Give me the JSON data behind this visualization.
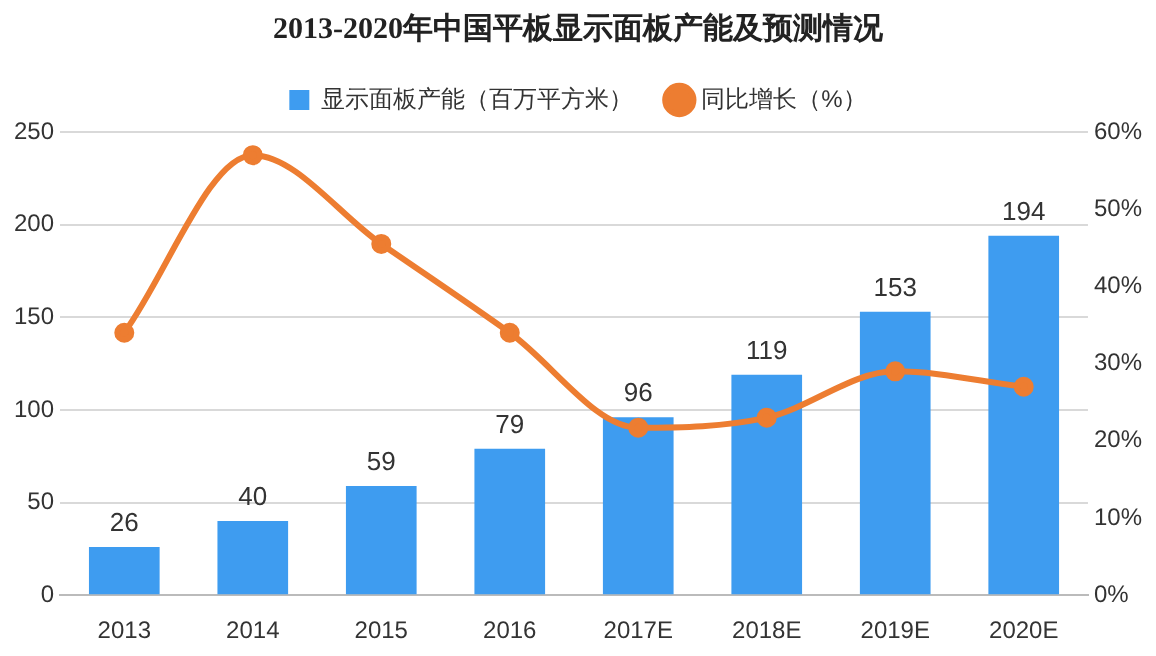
{
  "chart_data": {
    "type": "bar",
    "title": "2013-2020年中国平板显示面板产能及预测情况",
    "categories": [
      "2013",
      "2014",
      "2015",
      "2016",
      "2017E",
      "2018E",
      "2019E",
      "2020E"
    ],
    "series": [
      {
        "name": "显示面板产能（百万平方米）",
        "color": "#3e9cf0",
        "values": [
          26,
          40,
          59,
          79,
          96,
          119,
          153,
          194
        ],
        "value_labels": [
          "26",
          "40",
          "59",
          "79",
          "96",
          "119",
          "153",
          "194"
        ]
      },
      {
        "name": "同比增长（%）",
        "type": "line",
        "axis": "y2",
        "color": "#ed7d31",
        "values": [
          34,
          57,
          45.5,
          34,
          21.7,
          23,
          29,
          27
        ]
      }
    ],
    "ylim": [
      0,
      250
    ],
    "yticks": [
      0,
      50,
      100,
      150,
      200,
      250
    ],
    "y2lim": [
      0,
      60
    ],
    "y2ticks": [
      {
        "value": 0,
        "label": "0%"
      },
      {
        "value": 10,
        "label": "10%"
      },
      {
        "value": 20,
        "label": "20%"
      },
      {
        "value": 30,
        "label": "30%"
      },
      {
        "value": 40,
        "label": "40%"
      },
      {
        "value": 50,
        "label": "50%"
      },
      {
        "value": 60,
        "label": "60%"
      }
    ],
    "grid": "y",
    "legend": "top",
    "marker": "circle",
    "line_style": "solid"
  }
}
